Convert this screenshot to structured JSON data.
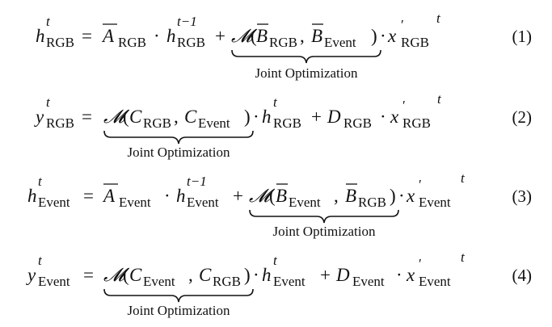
{
  "symbols": {
    "h": "h",
    "y": "y",
    "x": "x",
    "t": "t",
    "t_minus_1": "t−1",
    "prime": "′",
    "A": "A",
    "B": "B",
    "C": "C",
    "D": "D",
    "M": "𝓜",
    "equals": "=",
    "plus": "+",
    "dot": "·",
    "comma": ",",
    "lparen": "(",
    "rparen": ")"
  },
  "modalities": {
    "rgb": "RGB",
    "event": "Event"
  },
  "brace_label": "Joint Optimization",
  "equation_numbers": [
    "(1)",
    "(2)",
    "(3)",
    "(4)"
  ]
}
